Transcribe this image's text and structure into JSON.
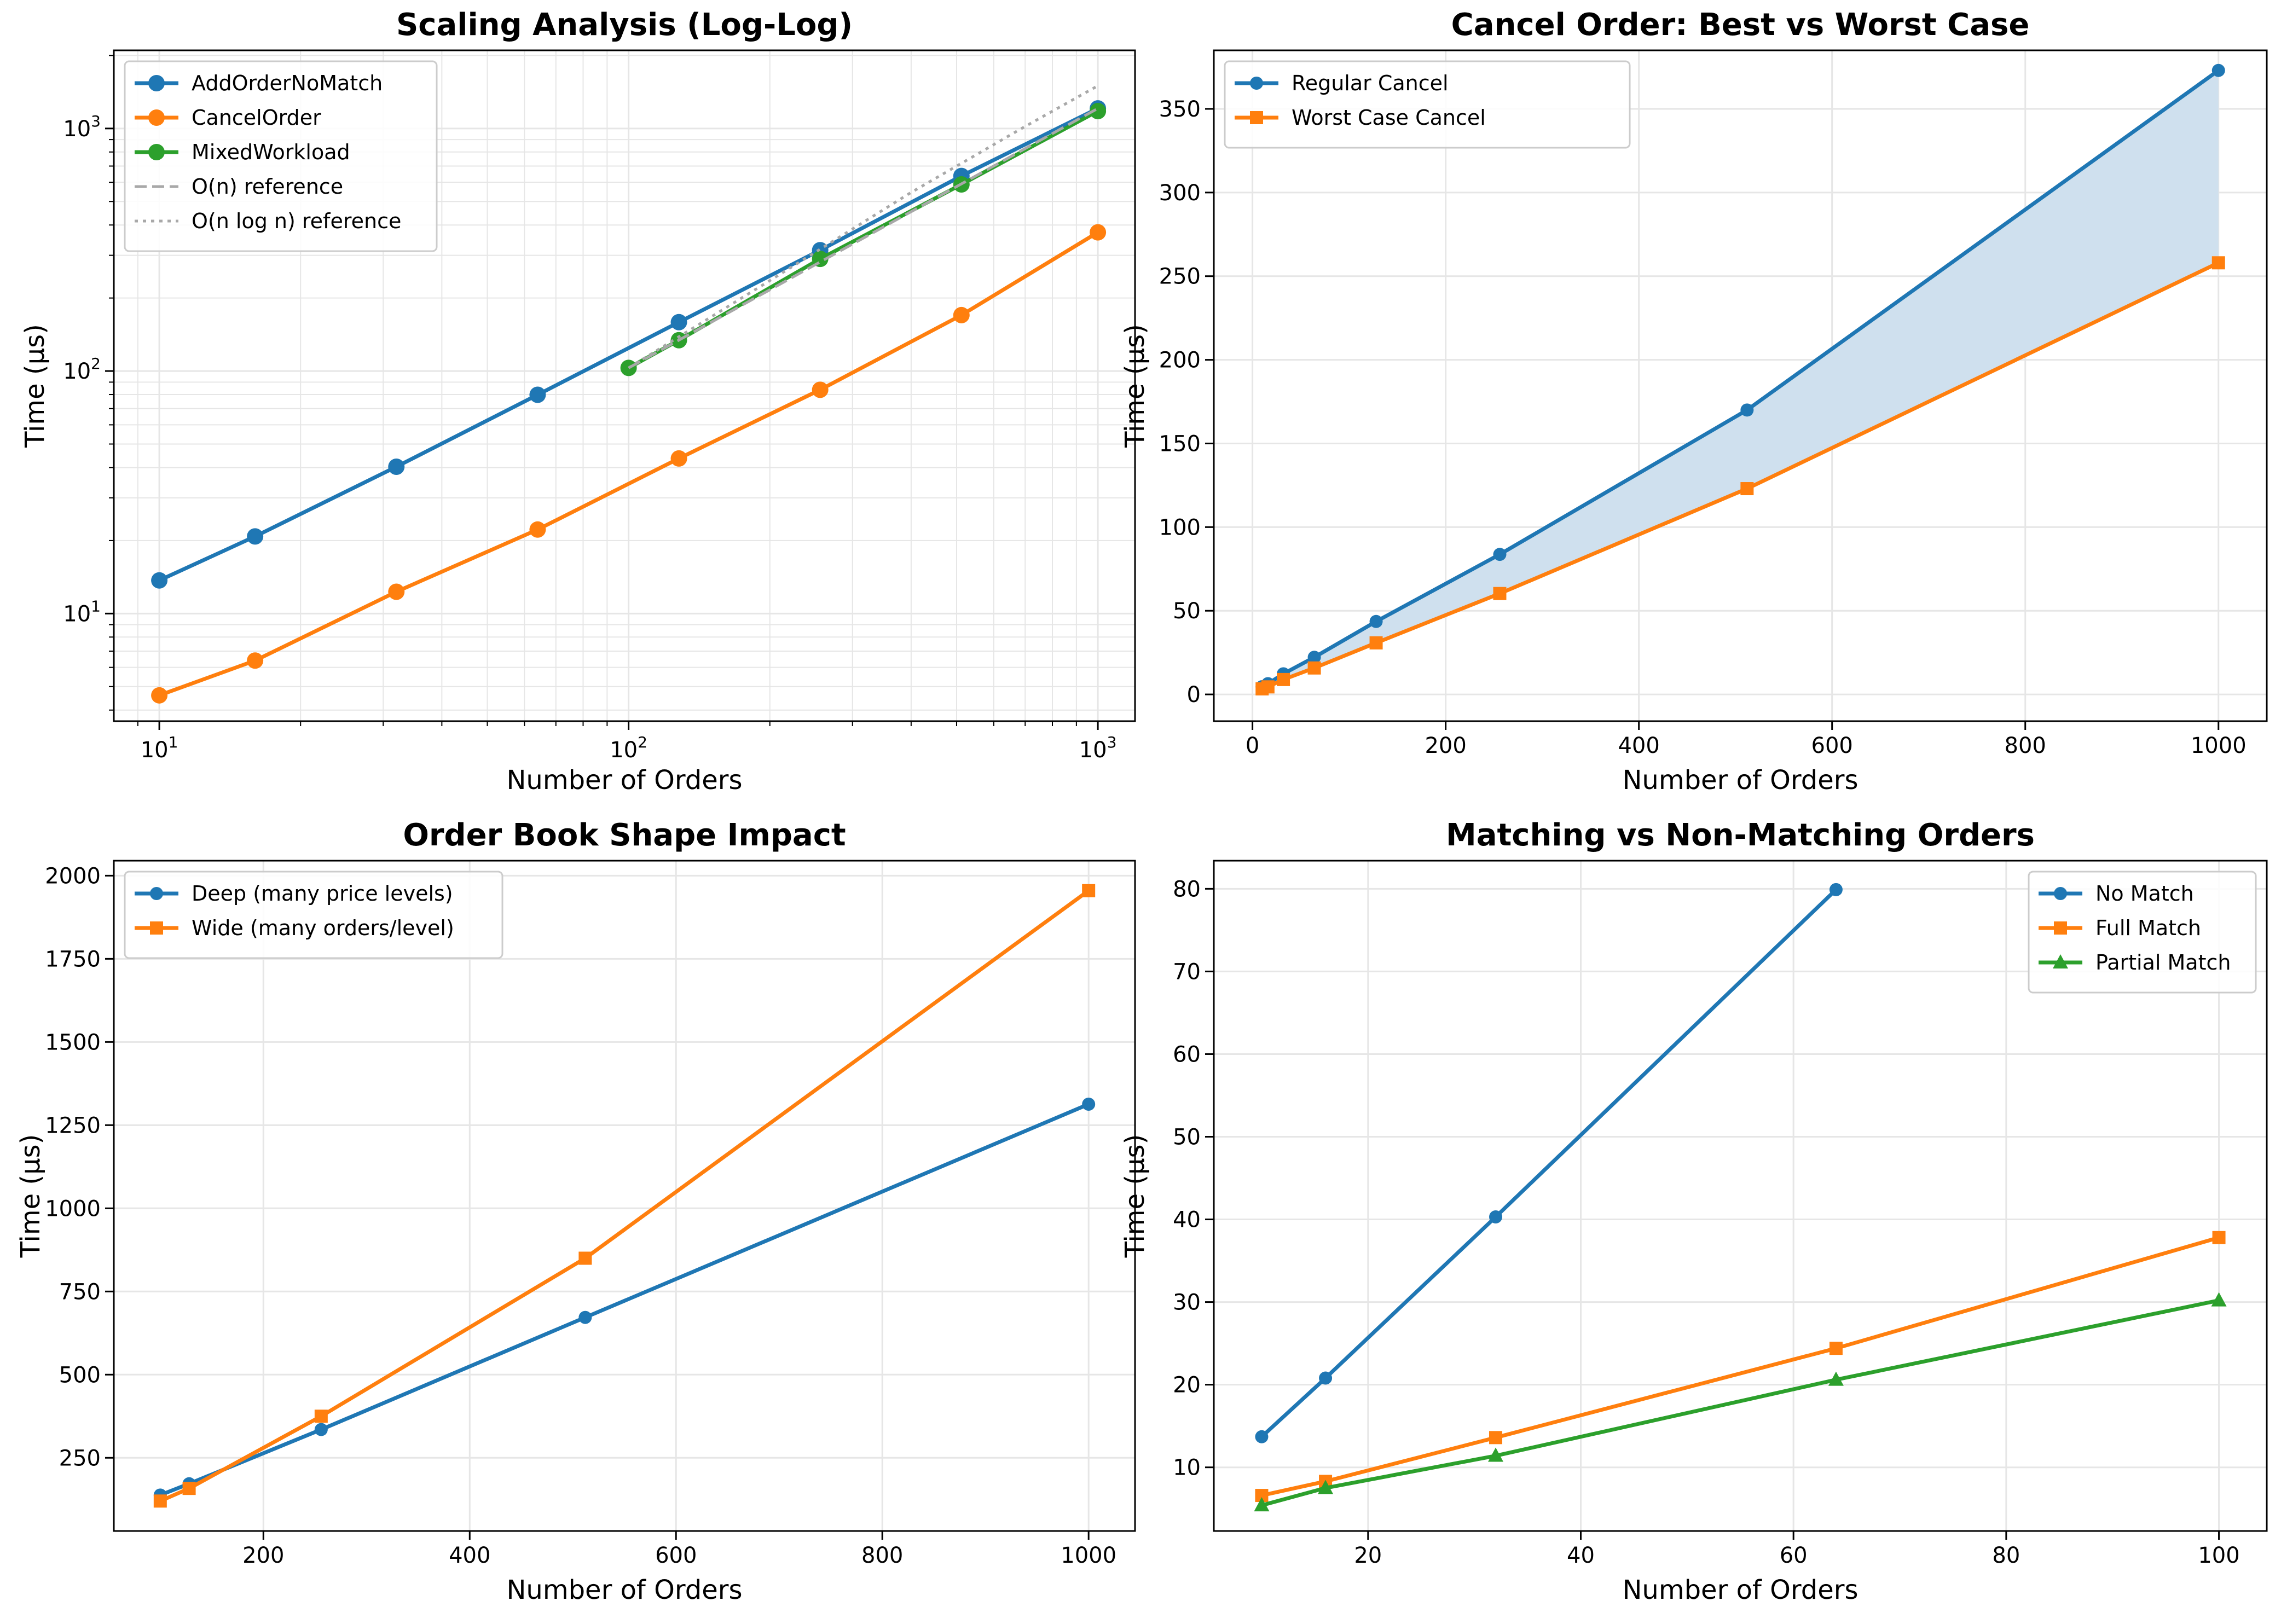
{
  "colors": {
    "blue": "#1f77b4",
    "orange": "#ff7f0e",
    "green": "#2ca02c",
    "grid": "#e6e6e6",
    "refgray": "#a8a8a8",
    "fill": "#cfe0ee"
  },
  "chart_data": [
    {
      "type": "line",
      "title": "Scaling Analysis (Log-Log)",
      "xlabel": "Number of Orders",
      "ylabel": "Time (µs)",
      "xscale": "log",
      "yscale": "log",
      "xlim": [
        8,
        1200
      ],
      "ylim": [
        3.6,
        2100
      ],
      "grid": true,
      "legend": "top-left",
      "xticks": [
        {
          "v": 10,
          "b": "10",
          "e": "1"
        },
        {
          "v": 100,
          "b": "10",
          "e": "2"
        },
        {
          "v": 1000,
          "b": "10",
          "e": "3"
        }
      ],
      "yticks": [
        {
          "v": 10,
          "b": "10",
          "e": "1"
        },
        {
          "v": 100,
          "b": "10",
          "e": "2"
        },
        {
          "v": 1000,
          "b": "10",
          "e": "3"
        }
      ],
      "series": [
        {
          "name": "AddOrderNoMatch",
          "color": "blue",
          "marker": "circle",
          "x": [
            10,
            16,
            32,
            64,
            128,
            256,
            512,
            1000
          ],
          "y": [
            13.7,
            20.8,
            40.3,
            79.8,
            159,
            315,
            637,
            1210
          ]
        },
        {
          "name": "CancelOrder",
          "color": "orange",
          "marker": "circle",
          "x": [
            10,
            16,
            32,
            64,
            128,
            256,
            512,
            1000
          ],
          "y": [
            4.6,
            6.4,
            12.3,
            22.2,
            43.6,
            83.7,
            170,
            373
          ]
        },
        {
          "name": "MixedWorkload",
          "color": "green",
          "marker": "circle",
          "x": [
            100,
            128,
            256,
            512,
            1000
          ],
          "y": [
            103,
            134,
            290,
            588,
            1180
          ]
        },
        {
          "name": "O(n) reference",
          "color": "refgray",
          "dash": "dashed",
          "x": [
            100,
            1000
          ],
          "y": [
            103,
            1210
          ]
        },
        {
          "name": "O(n log n) reference",
          "color": "refgray",
          "dash": "dotted",
          "x": [
            100,
            200,
            400,
            700,
            1000
          ],
          "y": [
            103,
            236,
            545,
            1020,
            1500
          ]
        }
      ]
    },
    {
      "type": "line",
      "title": "Cancel Order: Best vs Worst Case",
      "xlabel": "Number of Orders",
      "ylabel": "Time (µs)",
      "xlim": [
        -40,
        1050
      ],
      "ylim": [
        -16,
        385
      ],
      "grid": true,
      "legend": "top-left",
      "fill_between": true,
      "xticks": [
        0,
        200,
        400,
        600,
        800,
        1000
      ],
      "yticks": [
        0,
        50,
        100,
        150,
        200,
        250,
        300,
        350
      ],
      "series": [
        {
          "name": "Regular Cancel",
          "color": "blue",
          "marker": "circle",
          "x": [
            10,
            16,
            32,
            64,
            128,
            256,
            512,
            1000
          ],
          "y": [
            4.6,
            6.4,
            12.3,
            22.2,
            43.6,
            83.7,
            170,
            373
          ]
        },
        {
          "name": "Worst Case Cancel",
          "color": "orange",
          "marker": "square",
          "x": [
            10,
            16,
            32,
            64,
            128,
            256,
            512,
            1000
          ],
          "y": [
            3.3,
            4.5,
            8.9,
            15.8,
            30.8,
            60.3,
            123,
            258
          ]
        }
      ]
    },
    {
      "type": "line",
      "title": "Order Book Shape Impact",
      "xlabel": "Number of Orders",
      "ylabel": "Time (µs)",
      "xlim": [
        55,
        1045
      ],
      "ylim": [
        30,
        2045
      ],
      "grid": true,
      "legend": "top-left",
      "xticks": [
        200,
        400,
        600,
        800,
        1000
      ],
      "yticks": [
        250,
        500,
        750,
        1000,
        1250,
        1500,
        1750,
        2000
      ],
      "series": [
        {
          "name": "Deep (many price levels)",
          "color": "blue",
          "marker": "circle",
          "x": [
            100,
            128,
            256,
            512,
            1000
          ],
          "y": [
            138,
            172,
            335,
            672,
            1313
          ]
        },
        {
          "name": "Wide (many orders/level)",
          "color": "orange",
          "marker": "square",
          "x": [
            100,
            128,
            256,
            512,
            1000
          ],
          "y": [
            120,
            158,
            375,
            850,
            1955
          ]
        }
      ]
    },
    {
      "type": "line",
      "title": "Matching vs Non-Matching Orders",
      "xlabel": "Number of Orders",
      "ylabel": "Time (µs)",
      "xlim": [
        5.5,
        104.5
      ],
      "ylim": [
        2.3,
        83.4
      ],
      "grid": true,
      "legend": "top-right",
      "xticks": [
        20,
        40,
        60,
        80,
        100
      ],
      "yticks": [
        10,
        20,
        30,
        40,
        50,
        60,
        70,
        80
      ],
      "series": [
        {
          "name": "No Match",
          "color": "blue",
          "marker": "circle",
          "x": [
            10,
            16,
            32,
            64
          ],
          "y": [
            13.7,
            20.8,
            40.3,
            79.9
          ]
        },
        {
          "name": "Full Match",
          "color": "orange",
          "marker": "square",
          "x": [
            10,
            16,
            32,
            64,
            100
          ],
          "y": [
            6.6,
            8.3,
            13.6,
            24.4,
            37.8
          ]
        },
        {
          "name": "Partial Match",
          "color": "green",
          "marker": "triangle",
          "x": [
            10,
            16,
            32,
            64,
            100
          ],
          "y": [
            5.4,
            7.5,
            11.4,
            20.6,
            30.2
          ]
        }
      ]
    }
  ]
}
